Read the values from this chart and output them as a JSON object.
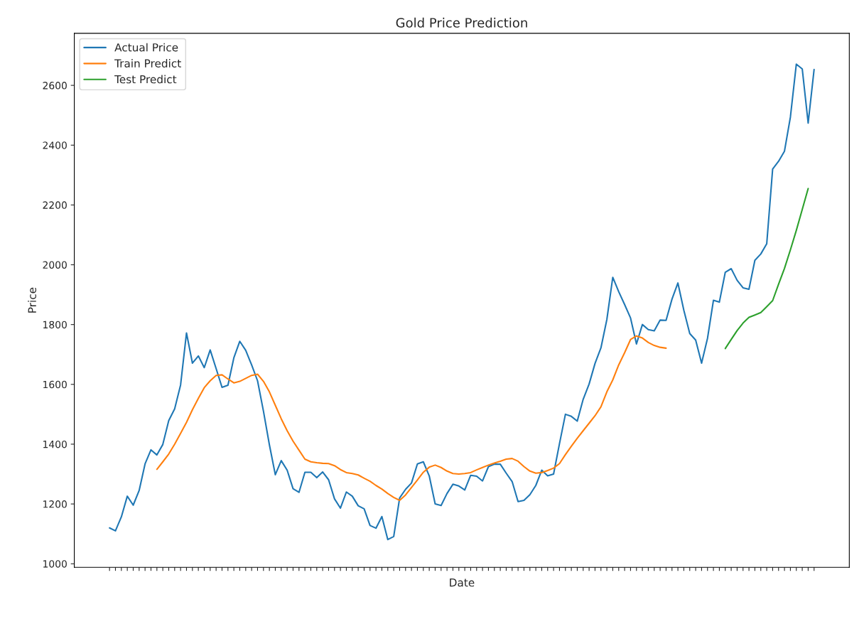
{
  "chart_data": {
    "type": "line",
    "title": "Gold Price Prediction",
    "xlabel": "Date",
    "ylabel": "Price",
    "categories": [
      null,
      null,
      null,
      null,
      null,
      null,
      null,
      null,
      null,
      null,
      null,
      null,
      null,
      null,
      null,
      null,
      null,
      null,
      null,
      null,
      null,
      null,
      null,
      null,
      null,
      null,
      null,
      null,
      null,
      null,
      null,
      null,
      null,
      null,
      null,
      null,
      null,
      null,
      null,
      null,
      null,
      null,
      null,
      null,
      null,
      null,
      null,
      null,
      null,
      null,
      null,
      null,
      null,
      null,
      null,
      null,
      null,
      null,
      null,
      null,
      null,
      null,
      null,
      null,
      null,
      null,
      null,
      null,
      null,
      null,
      null,
      null,
      null,
      null,
      null,
      null,
      null,
      null,
      null,
      null,
      null,
      null,
      null,
      null,
      null,
      null,
      null,
      null,
      null,
      null,
      null,
      null,
      null,
      null,
      null,
      null,
      null,
      null,
      null,
      null,
      null,
      null,
      null,
      null,
      null,
      null,
      null,
      null,
      null,
      null,
      null,
      null,
      null,
      null,
      null,
      null,
      null,
      null,
      null,
      null
    ],
    "series": [
      {
        "name": "Actual Price",
        "color": "#1f77b4",
        "values": [
          1120,
          1110,
          1157,
          1226,
          1196,
          1245,
          1334,
          1381,
          1364,
          1399,
          1479,
          1518,
          1598,
          1772,
          1671,
          1695,
          1656,
          1715,
          1653,
          1590,
          1597,
          1689,
          1744,
          1714,
          1665,
          1612,
          1510,
          1398,
          1298,
          1345,
          1313,
          1251,
          1239,
          1306,
          1306,
          1288,
          1307,
          1281,
          1217,
          1186,
          1240,
          1226,
          1194,
          1184,
          1128,
          1119,
          1158,
          1081,
          1091,
          1220,
          1249,
          1270,
          1334,
          1341,
          1294,
          1200,
          1195,
          1235,
          1266,
          1260,
          1247,
          1296,
          1293,
          1277,
          1325,
          1333,
          1333,
          1303,
          1275,
          1208,
          1212,
          1231,
          1262,
          1313,
          1294,
          1300,
          1402,
          1500,
          1493,
          1477,
          1550,
          1601,
          1670,
          1722,
          1817,
          1958,
          1910,
          1867,
          1822,
          1735,
          1800,
          1783,
          1779,
          1815,
          1814,
          1885,
          1939,
          1848,
          1770,
          1748,
          1671,
          1754,
          1881,
          1875,
          1975,
          1987,
          1948,
          1923,
          1918,
          2015,
          2036,
          2070,
          2320,
          2346,
          2380,
          2494,
          2671,
          2655,
          2474,
          2653
        ]
      },
      {
        "name": "Train Predict",
        "color": "#ff7f0e",
        "values": [
          null,
          null,
          null,
          null,
          null,
          null,
          null,
          null,
          1316,
          1341,
          1367,
          1400,
          1436,
          1473,
          1515,
          1553,
          1589,
          1612,
          1630,
          1632,
          1618,
          1605,
          1610,
          1620,
          1630,
          1634,
          1610,
          1575,
          1530,
          1485,
          1445,
          1410,
          1380,
          1350,
          1341,
          1338,
          1336,
          1335,
          1328,
          1315,
          1305,
          1302,
          1297,
          1286,
          1276,
          1262,
          1250,
          1235,
          1222,
          1212,
          1230,
          1255,
          1280,
          1306,
          1323,
          1330,
          1322,
          1310,
          1302,
          1300,
          1302,
          1305,
          1314,
          1322,
          1330,
          1337,
          1343,
          1350,
          1352,
          1343,
          1325,
          1310,
          1303,
          1305,
          1312,
          1320,
          1335,
          1365,
          1393,
          1420,
          1445,
          1470,
          1495,
          1525,
          1575,
          1615,
          1665,
          1706,
          1750,
          1762,
          1755,
          1740,
          1730,
          1724,
          1721,
          null,
          null,
          null,
          null,
          null,
          null,
          null,
          null,
          null,
          null,
          null,
          null,
          null,
          null,
          null,
          null,
          null,
          null,
          null,
          null,
          null,
          null,
          null,
          null,
          null
        ]
      },
      {
        "name": "Test Predict",
        "color": "#2ca02c",
        "values": [
          null,
          null,
          null,
          null,
          null,
          null,
          null,
          null,
          null,
          null,
          null,
          null,
          null,
          null,
          null,
          null,
          null,
          null,
          null,
          null,
          null,
          null,
          null,
          null,
          null,
          null,
          null,
          null,
          null,
          null,
          null,
          null,
          null,
          null,
          null,
          null,
          null,
          null,
          null,
          null,
          null,
          null,
          null,
          null,
          null,
          null,
          null,
          null,
          null,
          null,
          null,
          null,
          null,
          null,
          null,
          null,
          null,
          null,
          null,
          null,
          null,
          null,
          null,
          null,
          null,
          null,
          null,
          null,
          null,
          null,
          null,
          null,
          null,
          null,
          null,
          null,
          null,
          null,
          null,
          null,
          null,
          null,
          null,
          null,
          null,
          null,
          null,
          null,
          null,
          null,
          null,
          null,
          null,
          null,
          null,
          null,
          null,
          null,
          null,
          null,
          null,
          null,
          null,
          null,
          1720,
          1750,
          1780,
          1805,
          1824,
          1832,
          1840,
          1860,
          1880,
          1935,
          1988,
          2050,
          2115,
          2185,
          2255,
          null
        ]
      }
    ],
    "ylim": [
      988,
      2774
    ],
    "yticks": [
      1000,
      1200,
      1400,
      1600,
      1800,
      2000,
      2200,
      2400,
      2600
    ],
    "legend": "top left",
    "grid": false
  }
}
